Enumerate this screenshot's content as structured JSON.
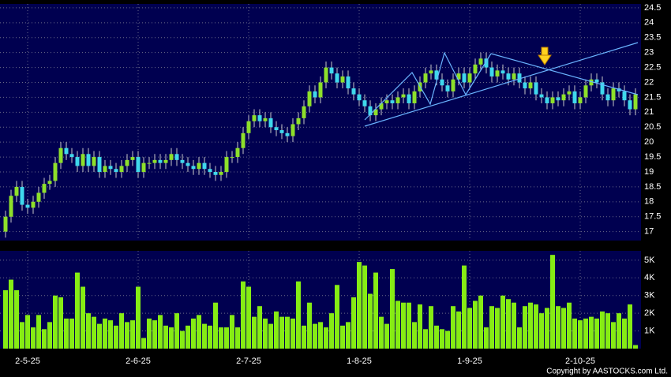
{
  "chart_data": [
    {
      "type": "candlestick",
      "ylim": [
        16.7,
        24.63
      ],
      "yticks": [
        17,
        17.5,
        18,
        18.5,
        19,
        19.5,
        20,
        20.5,
        21,
        21.5,
        22,
        22.5,
        23,
        23.5,
        24,
        24.5
      ],
      "grid": true,
      "up_color": "#8ee02a",
      "down_color": "#3fd8ec",
      "wick_color": "#c8c8c8",
      "open": [
        17.0,
        17.5,
        18.2,
        18.5,
        17.9,
        17.8,
        18.0,
        18.3,
        18.6,
        18.7,
        19.3,
        19.8,
        19.6,
        19.5,
        19.2,
        19.6,
        19.2,
        19.5,
        19.0,
        19.2,
        19.1,
        19.0,
        19.2,
        19.4,
        19.5,
        19.0,
        19.3,
        19.3,
        19.4,
        19.3,
        19.4,
        19.6,
        19.4,
        19.3,
        19.2,
        19.1,
        19.3,
        19.1,
        19.0,
        18.9,
        19.0,
        19.5,
        19.5,
        19.8,
        20.3,
        20.7,
        20.9,
        20.7,
        20.8,
        20.5,
        20.4,
        20.3,
        20.2,
        20.6,
        20.8,
        21.2,
        21.7,
        21.5,
        22.0,
        22.5,
        22.3,
        22.0,
        22.2,
        21.8,
        21.6,
        21.4,
        21.2,
        20.9,
        21.1,
        21.3,
        21.4,
        21.3,
        21.5,
        21.6,
        21.3,
        21.7,
        22.0,
        22.3,
        22.4,
        22.1,
        21.9,
        21.7,
        22.1,
        22.3,
        22.0,
        22.3,
        22.6,
        22.8,
        22.5,
        22.2,
        22.4,
        22.3,
        22.1,
        22.3,
        22.0,
        21.8,
        22.0,
        21.6,
        21.5,
        21.3,
        21.5,
        21.4,
        21.6,
        21.7,
        21.3,
        21.5,
        21.9,
        22.1,
        22.0,
        21.6,
        21.4,
        21.8,
        21.7,
        21.4,
        21.1
      ],
      "high": [
        17.7,
        18.4,
        18.7,
        18.7,
        18.1,
        18.2,
        18.5,
        18.8,
        18.9,
        19.5,
        20.0,
        20.0,
        19.8,
        19.7,
        19.8,
        19.8,
        19.7,
        19.7,
        19.4,
        19.4,
        19.3,
        19.4,
        19.6,
        19.7,
        19.7,
        19.5,
        19.5,
        19.6,
        19.6,
        19.6,
        19.8,
        19.8,
        19.6,
        19.5,
        19.4,
        19.5,
        19.5,
        19.3,
        19.2,
        19.2,
        19.7,
        19.7,
        20.0,
        20.5,
        20.9,
        21.1,
        21.1,
        21.0,
        21.0,
        20.7,
        20.6,
        20.5,
        20.8,
        21.0,
        21.4,
        21.9,
        21.9,
        22.2,
        22.7,
        22.7,
        22.5,
        22.4,
        22.4,
        22.0,
        21.8,
        21.6,
        21.4,
        21.3,
        21.5,
        21.6,
        21.6,
        21.7,
        21.8,
        21.8,
        21.9,
        22.2,
        22.5,
        22.6,
        22.6,
        22.3,
        22.1,
        22.3,
        22.5,
        22.5,
        22.5,
        22.8,
        23.0,
        23.0,
        22.7,
        22.6,
        22.6,
        22.5,
        22.5,
        22.5,
        22.2,
        22.2,
        22.2,
        21.8,
        21.7,
        21.7,
        21.7,
        21.8,
        21.9,
        21.9,
        21.7,
        22.1,
        22.3,
        22.3,
        22.2,
        21.8,
        22.0,
        22.0,
        21.9,
        21.6,
        21.8
      ],
      "low": [
        16.8,
        17.3,
        18.0,
        17.7,
        17.6,
        17.6,
        17.8,
        18.1,
        18.4,
        18.5,
        19.1,
        19.4,
        19.3,
        19.0,
        19.0,
        19.0,
        19.0,
        18.8,
        18.8,
        18.9,
        18.8,
        18.8,
        19.0,
        19.2,
        18.8,
        18.8,
        19.1,
        19.1,
        19.1,
        19.1,
        19.2,
        19.2,
        19.1,
        19.0,
        18.9,
        18.9,
        18.9,
        18.8,
        18.7,
        18.7,
        18.8,
        19.3,
        19.3,
        19.6,
        20.1,
        20.5,
        20.5,
        20.5,
        20.3,
        20.2,
        20.1,
        20.0,
        20.0,
        20.4,
        20.6,
        21.0,
        21.3,
        21.3,
        21.8,
        22.1,
        21.8,
        21.8,
        21.6,
        21.4,
        21.2,
        21.0,
        20.7,
        20.7,
        20.9,
        21.1,
        21.1,
        21.1,
        21.3,
        21.1,
        21.1,
        21.5,
        21.8,
        22.1,
        21.9,
        21.7,
        21.5,
        21.5,
        21.9,
        21.8,
        21.8,
        22.1,
        22.4,
        22.3,
        22.0,
        22.0,
        22.1,
        21.9,
        21.9,
        21.8,
        21.6,
        21.6,
        21.4,
        21.3,
        21.1,
        21.1,
        21.2,
        21.2,
        21.4,
        21.1,
        21.1,
        21.3,
        21.7,
        21.8,
        21.4,
        21.2,
        21.2,
        21.5,
        21.2,
        20.9,
        20.9
      ],
      "close": [
        17.5,
        18.2,
        18.5,
        17.9,
        17.8,
        18.0,
        18.3,
        18.6,
        18.7,
        19.3,
        19.8,
        19.6,
        19.5,
        19.2,
        19.6,
        19.2,
        19.5,
        19.0,
        19.2,
        19.1,
        19.0,
        19.2,
        19.4,
        19.5,
        19.0,
        19.3,
        19.3,
        19.4,
        19.3,
        19.4,
        19.6,
        19.4,
        19.3,
        19.2,
        19.1,
        19.3,
        19.1,
        19.0,
        18.9,
        19.0,
        19.5,
        19.5,
        19.8,
        20.3,
        20.7,
        20.9,
        20.7,
        20.8,
        20.5,
        20.4,
        20.3,
        20.2,
        20.6,
        20.8,
        21.2,
        21.7,
        21.5,
        22.0,
        22.5,
        22.3,
        22.0,
        22.2,
        21.8,
        21.6,
        21.4,
        21.2,
        20.9,
        21.1,
        21.3,
        21.4,
        21.3,
        21.5,
        21.6,
        21.3,
        21.7,
        22.0,
        22.3,
        22.4,
        22.1,
        21.9,
        21.7,
        22.1,
        22.3,
        22.0,
        22.3,
        22.6,
        22.8,
        22.5,
        22.2,
        22.4,
        22.3,
        22.1,
        22.3,
        22.0,
        21.8,
        22.0,
        21.6,
        21.5,
        21.3,
        21.5,
        21.4,
        21.6,
        21.7,
        21.3,
        21.5,
        21.9,
        22.1,
        22.0,
        21.6,
        21.4,
        21.8,
        21.7,
        21.4,
        21.1,
        21.6
      ]
    },
    {
      "type": "bar",
      "color": "#86ec14",
      "ylim": [
        0,
        5530
      ],
      "yticks": [
        {
          "value": 1000,
          "label": "1K"
        },
        {
          "value": 2000,
          "label": "2K"
        },
        {
          "value": 3000,
          "label": "3K"
        },
        {
          "value": 4000,
          "label": "4K"
        },
        {
          "value": 5000,
          "label": "5K"
        }
      ],
      "grid": true,
      "categories": [
        null,
        null,
        null,
        null,
        "2-5-25",
        null,
        null,
        null,
        null,
        null,
        null,
        null,
        null,
        null,
        null,
        null,
        null,
        null,
        null,
        null,
        null,
        null,
        null,
        null,
        "2-6-25",
        null,
        null,
        null,
        null,
        null,
        null,
        null,
        null,
        null,
        null,
        null,
        null,
        null,
        null,
        null,
        null,
        null,
        null,
        null,
        "2-7-25",
        null,
        null,
        null,
        null,
        null,
        null,
        null,
        null,
        null,
        null,
        null,
        null,
        null,
        null,
        null,
        null,
        null,
        null,
        null,
        "1-8-25",
        null,
        null,
        null,
        null,
        null,
        null,
        null,
        null,
        null,
        null,
        null,
        null,
        null,
        null,
        null,
        null,
        null,
        null,
        null,
        "1-9-25",
        null,
        null,
        null,
        null,
        null,
        null,
        null,
        null,
        null,
        null,
        null,
        null,
        null,
        null,
        null,
        null,
        null,
        null,
        null,
        "2-10-25",
        null,
        null,
        null,
        null,
        null,
        null,
        null,
        null,
        null,
        null
      ],
      "values": [
        3300,
        3900,
        3300,
        1500,
        1900,
        1200,
        1900,
        1100,
        1500,
        3000,
        2900,
        1700,
        1700,
        4300,
        3500,
        2000,
        1800,
        1400,
        1700,
        1600,
        1300,
        2000,
        1500,
        1600,
        3500,
        600,
        1700,
        1600,
        1900,
        1300,
        1200,
        2000,
        1000,
        1300,
        1700,
        1900,
        1400,
        1300,
        2600,
        1200,
        1200,
        1900,
        1200,
        3800,
        3500,
        1800,
        2400,
        1700,
        1400,
        2100,
        1800,
        1800,
        1700,
        3800,
        1300,
        2600,
        1400,
        1500,
        1200,
        2000,
        3600,
        1300,
        1500,
        2900,
        4900,
        4700,
        3100,
        4300,
        1800,
        1400,
        4500,
        2700,
        2600,
        2600,
        1500,
        2500,
        1100,
        2400,
        1300,
        1100,
        1000,
        2400,
        2100,
        4700,
        2300,
        2700,
        3000,
        1200,
        2400,
        2300,
        3000,
        2800,
        2600,
        1200,
        2400,
        2600,
        2500,
        2000,
        2300,
        5300,
        2400,
        2300,
        2600,
        1700,
        1600,
        1700,
        1800,
        1700,
        2100,
        2000,
        1500,
        2000,
        1700,
        2500,
        200
      ],
      "source": "Copyright by AASTOCKS.com Ltd."
    }
  ]
}
